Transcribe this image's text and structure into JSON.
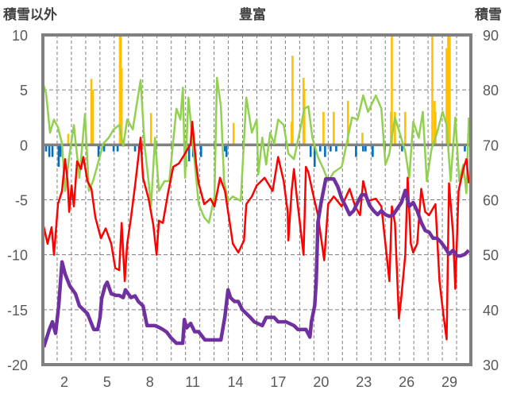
{
  "chart_data": {
    "type": "line",
    "title": "豊富",
    "ylabel_left": "積雪以外",
    "ylabel_right": "積雪",
    "xlim": [
      0.5,
      30.5
    ],
    "ylim_left": [
      -20,
      10
    ],
    "ylim_right": [
      30,
      90
    ],
    "left_ticks": [
      "10",
      "5",
      "0",
      "-5",
      "-10",
      "-15",
      "-20"
    ],
    "left_tick_values": [
      10,
      5,
      0,
      -5,
      -10,
      -15,
      -20
    ],
    "right_ticks": [
      "90",
      "80",
      "70",
      "60",
      "50",
      "40",
      "30"
    ],
    "right_tick_values": [
      90,
      80,
      70,
      60,
      50,
      40,
      30
    ],
    "x_ticks": [
      "2",
      "5",
      "8",
      "11",
      "14",
      "17",
      "20",
      "23",
      "26",
      "29"
    ],
    "x_tick_values": [
      2,
      5,
      8,
      11,
      14,
      17,
      20,
      23,
      26,
      29
    ],
    "grid": true,
    "series": [
      {
        "kind": "bar",
        "axis": "left",
        "color": "#FFC000",
        "x": [
          2.28,
          3.9,
          3.95,
          4.01,
          5.9,
          5.96,
          6.02,
          8.08,
          13.87,
          17.94,
          18.0,
          18.77,
          18.83,
          20.17,
          20.89,
          21.89,
          22.9,
          24.9,
          24.96,
          25.18,
          25.9,
          27.8,
          27.96,
          28.02,
          28.8,
          28.91,
          29.02
        ],
        "y": [
          1.0,
          6.0,
          4.0,
          5.0,
          10,
          10,
          7,
          2.9,
          2.0,
          2.1,
          8.1,
          6.1,
          5.0,
          3.0,
          3.0,
          4.0,
          1.1,
          3.0,
          10,
          3.0,
          3.0,
          10,
          4.0,
          3.0,
          8.8,
          10,
          10
        ]
      },
      {
        "kind": "bar",
        "axis": "left",
        "color": "#0070C0",
        "x": [
          0.72,
          0.95,
          1.17,
          1.61,
          1.73,
          4.4,
          4.79,
          5.46,
          5.74,
          6.96,
          7.24,
          10.53,
          10.75,
          11.03,
          11.59,
          13.26,
          13.37,
          19.27,
          19.55,
          19.94,
          20.28,
          20.67,
          21.06,
          22.45,
          22.95,
          23.12,
          23.62,
          24.46,
          25.68,
          30.08
        ],
        "y": [
          -0.6,
          -1.1,
          -1.1,
          -2.0,
          -1.1,
          -1.1,
          -0.6,
          -0.6,
          -0.6,
          -0.6,
          -0.6,
          -2.0,
          -1.5,
          -1.1,
          -1.1,
          -0.6,
          -1.1,
          -1.1,
          -2.0,
          -0.6,
          -1.1,
          -0.6,
          -0.6,
          -1.1,
          -0.6,
          -0.6,
          -1.1,
          -0.6,
          -0.6,
          -0.6
        ]
      },
      {
        "kind": "line",
        "axis": "left",
        "color": "#92D050",
        "x": [
          0.56,
          0.72,
          1.0,
          1.28,
          1.56,
          1.84,
          2.06,
          2.34,
          2.67,
          3.06,
          3.45,
          3.73,
          4.01,
          4.34,
          4.73,
          5.12,
          5.46,
          5.85,
          6.13,
          6.41,
          6.8,
          7.35,
          7.63,
          7.91,
          8.08,
          8.36,
          8.63,
          9.02,
          9.36,
          9.86,
          10.14,
          10.31,
          10.47,
          10.7,
          11.03,
          11.42,
          11.81,
          12.14,
          12.53,
          12.7,
          12.98,
          13.2,
          13.48,
          13.82,
          14.37,
          14.76,
          15.15,
          15.49,
          15.6,
          15.88,
          16.15,
          16.43,
          16.71,
          16.99,
          17.38,
          17.71,
          18.1,
          18.49,
          18.83,
          19.11,
          19.39,
          19.78,
          20.17,
          20.5,
          20.89,
          21.45,
          21.84,
          22.17,
          22.56,
          22.95,
          23.29,
          23.84,
          24.23,
          24.51,
          24.79,
          25.18,
          25.51,
          25.9,
          26.18,
          26.46,
          26.85,
          27.13,
          27.41,
          27.74,
          28.13,
          28.52,
          28.8,
          29.08,
          29.41,
          29.69,
          29.97,
          30.19,
          30.36
        ],
        "y": [
          5.4,
          4.7,
          1.1,
          2.3,
          1.6,
          0.1,
          -4.2,
          -1.1,
          1.8,
          -3.0,
          2.8,
          -4.2,
          -3.3,
          -1.8,
          0.1,
          0.65,
          1.4,
          1.8,
          -0.1,
          2.3,
          1.4,
          5.9,
          -0.1,
          -3.3,
          -5.6,
          0.65,
          -4.2,
          -3.3,
          -3.3,
          3.3,
          2.3,
          5.2,
          -3.0,
          4.3,
          -0.1,
          -5.4,
          -6.6,
          -7.1,
          -4.7,
          6.1,
          3.5,
          -3.3,
          -5.1,
          -4.7,
          -5.1,
          4.3,
          1.1,
          2.3,
          -2.7,
          0.65,
          -1.8,
          1.1,
          0.1,
          2.3,
          1.8,
          -0.8,
          -1.3,
          1.1,
          3.3,
          3.5,
          0.65,
          -1.1,
          -2.2,
          -3.3,
          -2.5,
          -2.0,
          0.4,
          2.5,
          2.3,
          4.5,
          3.0,
          4.5,
          3.3,
          -1.8,
          -0.8,
          2.5,
          1.1,
          -0.6,
          -3.0,
          2.1,
          0.65,
          3.0,
          -3.3,
          -0.4,
          1.1,
          3.0,
          1.8,
          -3.3,
          2.5,
          -3.3,
          -1.8,
          -4.4,
          2.5
        ]
      },
      {
        "kind": "line",
        "axis": "left",
        "color": "#FF0000",
        "x": [
          0.56,
          0.83,
          1.11,
          1.28,
          1.56,
          1.84,
          2.06,
          2.23,
          2.34,
          2.51,
          2.67,
          2.9,
          3.17,
          3.34,
          3.62,
          3.9,
          4.18,
          4.57,
          4.9,
          5.29,
          5.57,
          5.85,
          6.02,
          6.24,
          6.41,
          6.68,
          6.96,
          7.35,
          7.52,
          7.91,
          8.24,
          8.47,
          8.63,
          8.91,
          9.3,
          9.64,
          10.03,
          10.42,
          10.86,
          10.97,
          11.25,
          11.42,
          11.81,
          12.25,
          12.53,
          12.92,
          13.26,
          13.54,
          13.82,
          14.2,
          14.6,
          14.76,
          15.15,
          15.49,
          16.04,
          16.6,
          16.99,
          17.38,
          17.66,
          17.71,
          17.94,
          18.1,
          18.27,
          18.77,
          18.94,
          19.11,
          19.39,
          19.78,
          20.22,
          20.5,
          20.89,
          21.45,
          22.0,
          22.39,
          22.73,
          22.95,
          23.29,
          23.84,
          24.23,
          24.51,
          24.79,
          24.96,
          25.18,
          25.46,
          25.63,
          25.9,
          26.07,
          26.29,
          26.46,
          26.74,
          27.02,
          27.3,
          27.57,
          28.02,
          28.3,
          28.58,
          28.8,
          28.97,
          29.25,
          29.41,
          29.64,
          29.97,
          30.19,
          30.36
        ],
        "y": [
          -7.45,
          -9.0,
          -7.5,
          -10.0,
          -5.4,
          -4.2,
          -1.3,
          -3.3,
          -6.1,
          -3.7,
          -5.6,
          -1.5,
          -2.2,
          -1.1,
          -3.3,
          -4.0,
          -6.6,
          -8.5,
          -7.6,
          -9.0,
          -11.2,
          -11.4,
          -7.1,
          -12.4,
          -9.0,
          -6.6,
          -3.7,
          0.65,
          -3.0,
          -4.9,
          -7.3,
          -10.0,
          -6.9,
          -7.1,
          -4.2,
          -2.0,
          -1.7,
          -0.9,
          0.1,
          2.1,
          -1.8,
          -3.5,
          -5.4,
          -4.9,
          -5.6,
          -3.0,
          -4.2,
          -6.6,
          -9.0,
          -9.8,
          -8.7,
          -5.4,
          -4.7,
          -3.7,
          -3.0,
          -4.2,
          -1.1,
          -3.3,
          -6.1,
          -8.7,
          -4.2,
          -2.2,
          -4.4,
          -10.0,
          -2.0,
          -2.5,
          -4.2,
          -6.4,
          -10.5,
          -5.4,
          -4.7,
          -5.6,
          -4.0,
          -5.6,
          -6.4,
          -3.3,
          -5.1,
          -4.9,
          -5.6,
          -9.0,
          -12.4,
          -5.6,
          -7.1,
          -15.8,
          -13.8,
          -10.0,
          -3.0,
          -9.0,
          -9.8,
          -9.0,
          -4.0,
          -6.1,
          -6.4,
          -5.4,
          -12.4,
          -15.5,
          -17.7,
          -3.5,
          -8.0,
          -13.1,
          -4.2,
          -2.2,
          -1.3,
          -3.5
        ]
      },
      {
        "kind": "line",
        "axis": "right",
        "color": "#7030A0",
        "x": [
          0.56,
          0.95,
          1.17,
          1.39,
          1.61,
          1.84,
          2.06,
          2.39,
          2.78,
          3.06,
          3.62,
          4.07,
          4.34,
          4.51,
          4.62,
          4.85,
          5.01,
          5.29,
          5.63,
          5.85,
          6.13,
          6.29,
          6.68,
          6.96,
          7.19,
          7.52,
          7.8,
          8.36,
          8.63,
          8.91,
          9.19,
          9.47,
          9.86,
          10.3,
          10.42,
          10.58,
          10.86,
          11.14,
          11.42,
          11.86,
          12.53,
          12.98,
          13.26,
          13.48,
          13.65,
          13.93,
          14.2,
          14.48,
          15.04,
          15.32,
          15.88,
          16.15,
          16.71,
          16.99,
          17.55,
          18.1,
          18.38,
          18.94,
          19.22,
          19.33,
          19.55,
          19.66,
          19.78,
          20.0,
          20.33,
          20.89,
          21.17,
          21.45,
          21.73,
          22.0,
          22.28,
          22.56,
          22.84,
          23.12,
          23.4,
          23.68,
          23.96,
          24.23,
          24.51,
          24.79,
          25.07,
          25.63,
          25.9,
          26.18,
          26.46,
          26.74,
          27.02,
          27.3,
          27.57,
          27.85,
          28.13,
          28.41,
          28.69,
          28.97,
          29.25,
          29.52,
          29.8,
          30.08,
          30.36
        ],
        "y": [
          33.2,
          36.4,
          37.8,
          35.7,
          40.7,
          48.7,
          46.5,
          44.3,
          42.9,
          40.7,
          39.3,
          36.4,
          36.4,
          38.6,
          42,
          44.3,
          45,
          42.9,
          42.6,
          42.6,
          42.2,
          43.6,
          42.2,
          42.5,
          41.5,
          40.7,
          37.1,
          37.1,
          36.8,
          36.4,
          35.9,
          34.9,
          33.9,
          33.9,
          38.2,
          36.7,
          37.5,
          36,
          36,
          34.5,
          34.5,
          34.5,
          38.8,
          43.6,
          42.2,
          41.5,
          41.5,
          40,
          38.6,
          37.8,
          37.1,
          38.6,
          38.6,
          37.8,
          37.8,
          37.1,
          36.4,
          36.4,
          35,
          37.9,
          40.7,
          45,
          55.9,
          59.5,
          63.8,
          63.8,
          62.4,
          60.2,
          58.8,
          57.3,
          58,
          59.5,
          60.9,
          60.9,
          59,
          58,
          57.3,
          58,
          57.3,
          57,
          57.3,
          59.5,
          61.7,
          58.8,
          59.5,
          58,
          55.9,
          54.4,
          54.1,
          53,
          53,
          52.3,
          51.3,
          50.1,
          50.8,
          49.8,
          49.8,
          50.1,
          50.8
        ]
      }
    ]
  }
}
